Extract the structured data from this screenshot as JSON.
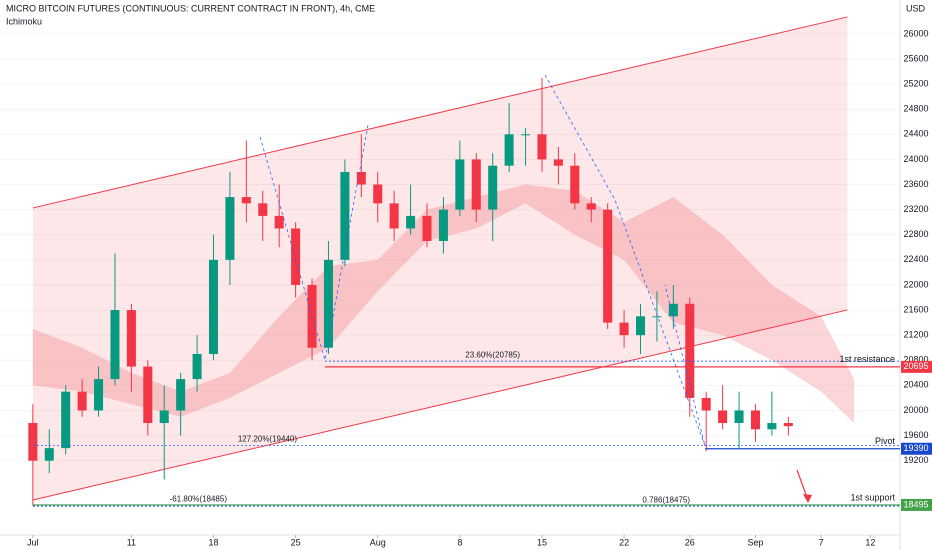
{
  "chart_data": {
    "type": "candlestick",
    "title": "MICRO BITCOIN FUTURES (CONTINUOUS: CURRENT CONTRACT IN FRONT), 4h, CME",
    "subtitle": "Ichimoku",
    "currency": "USD",
    "x": [
      0,
      1,
      2,
      3,
      4,
      5,
      6,
      7,
      8,
      9,
      10,
      11,
      12,
      13,
      14,
      15,
      16,
      17,
      18,
      19,
      20,
      21,
      22,
      23,
      24,
      25,
      26,
      27,
      28,
      29,
      30,
      31,
      32,
      33,
      34,
      35,
      36,
      37,
      38,
      39,
      40,
      41,
      42,
      43,
      44,
      45,
      46
    ],
    "open": [
      19800,
      19200,
      19400,
      20300,
      20000,
      20500,
      21600,
      20700,
      19800,
      20000,
      20500,
      20900,
      22400,
      23400,
      23300,
      23100,
      22900,
      22000,
      21000,
      22400,
      23800,
      23600,
      23300,
      22900,
      23100,
      22700,
      23200,
      24000,
      23200,
      23900,
      24400,
      24400,
      24000,
      23900,
      23300,
      23200,
      21400,
      21200,
      21500,
      21500,
      21700,
      20200,
      20000,
      19800,
      20000,
      19700,
      19800
    ],
    "high": [
      20100,
      19700,
      20400,
      20500,
      20700,
      22500,
      21700,
      20800,
      20400,
      20600,
      21200,
      22800,
      23800,
      24300,
      23500,
      23600,
      23000,
      22100,
      22700,
      24000,
      24400,
      23800,
      23500,
      23600,
      23300,
      23400,
      24300,
      24100,
      24100,
      24900,
      24500,
      25300,
      24200,
      24100,
      23400,
      23300,
      21600,
      21700,
      21900,
      22000,
      21800,
      20300,
      20400,
      20300,
      20100,
      20300,
      19900
    ],
    "low": [
      18480,
      19000,
      19300,
      19900,
      19900,
      20400,
      20300,
      19600,
      18900,
      19600,
      20300,
      20800,
      22000,
      23000,
      22700,
      22600,
      21800,
      20800,
      20900,
      22300,
      23400,
      23000,
      22700,
      22800,
      22600,
      22500,
      23100,
      23000,
      22700,
      23800,
      23900,
      23800,
      23600,
      23200,
      23000,
      21300,
      21000,
      20900,
      21100,
      21300,
      19900,
      19350,
      19700,
      19400,
      19500,
      19600,
      19600
    ],
    "close": [
      19200,
      19400,
      20300,
      20000,
      20500,
      21600,
      20700,
      19800,
      20000,
      20500,
      20900,
      22400,
      23400,
      23300,
      23100,
      22900,
      22000,
      21000,
      22400,
      23800,
      23600,
      23300,
      22900,
      23100,
      22700,
      23200,
      24000,
      23200,
      23900,
      24400,
      24400,
      24000,
      23900,
      23300,
      23200,
      21400,
      21200,
      21500,
      21500,
      21700,
      20200,
      20000,
      19800,
      20000,
      19700,
      19800,
      19750
    ],
    "up_color": "#089981",
    "down_color": "#f23645",
    "xlim": [
      -2,
      52.8
    ],
    "xticks": [
      {
        "value": 0,
        "label": "Jul"
      },
      {
        "value": 6,
        "label": "11"
      },
      {
        "value": 11,
        "label": "18"
      },
      {
        "value": 16,
        "label": "25"
      },
      {
        "value": 21,
        "label": "Aug"
      },
      {
        "value": 26,
        "label": "8"
      },
      {
        "value": 31,
        "label": "15"
      },
      {
        "value": 36,
        "label": "22"
      },
      {
        "value": 40,
        "label": "26"
      },
      {
        "value": 44,
        "label": "Sep"
      },
      {
        "value": 48,
        "label": "7"
      },
      {
        "value": 51,
        "label": "12"
      }
    ],
    "ylim": [
      18016,
      26540
    ],
    "yticks": [
      19200,
      19600,
      20000,
      20400,
      20800,
      21200,
      21600,
      22000,
      22400,
      22800,
      23200,
      23600,
      24000,
      24400,
      24800,
      25200,
      25600,
      26000
    ],
    "channel": {
      "x": [
        0,
        49.6
      ],
      "upper": [
        23227,
        26270
      ],
      "lower": [
        18574,
        21602
      ],
      "color": "#f23645"
    },
    "cloud": {
      "x": [
        0,
        3,
        6,
        9,
        12,
        15,
        18,
        21,
        24,
        27,
        30,
        33,
        36,
        39,
        42,
        45,
        48,
        50
      ],
      "top": [
        21300,
        21000,
        20600,
        20300,
        20600,
        21500,
        22300,
        22400,
        23200,
        23400,
        23600,
        23500,
        23000,
        23400,
        22800,
        22000,
        21500,
        20500
      ],
      "bottom": [
        20400,
        20300,
        20100,
        19900,
        20200,
        20600,
        21000,
        21900,
        22700,
        22900,
        23300,
        22800,
        22400,
        21400,
        21200,
        20800,
        20300,
        19800
      ],
      "color": "#f7a1a8"
    },
    "fib_levels": [
      {
        "label": "23.60%(20785)",
        "value": 20785,
        "color": "#2962ff"
      },
      {
        "label": "127.20%(19440)",
        "value": 19440,
        "color": "#2962ff"
      },
      {
        "label": "-61.80%(18485)",
        "value": 18485,
        "color": "#2962ff"
      },
      {
        "label": "0.786(18475)",
        "value": 18475,
        "color": "#2962ff"
      }
    ],
    "levels": [
      {
        "name": "1st resistance",
        "value": 20695,
        "color": "#f23645"
      },
      {
        "name": "Pivot",
        "value": 19390,
        "color": "#1848cc"
      },
      {
        "name": "1st support",
        "value": 18495,
        "color": "#43a047"
      }
    ]
  }
}
